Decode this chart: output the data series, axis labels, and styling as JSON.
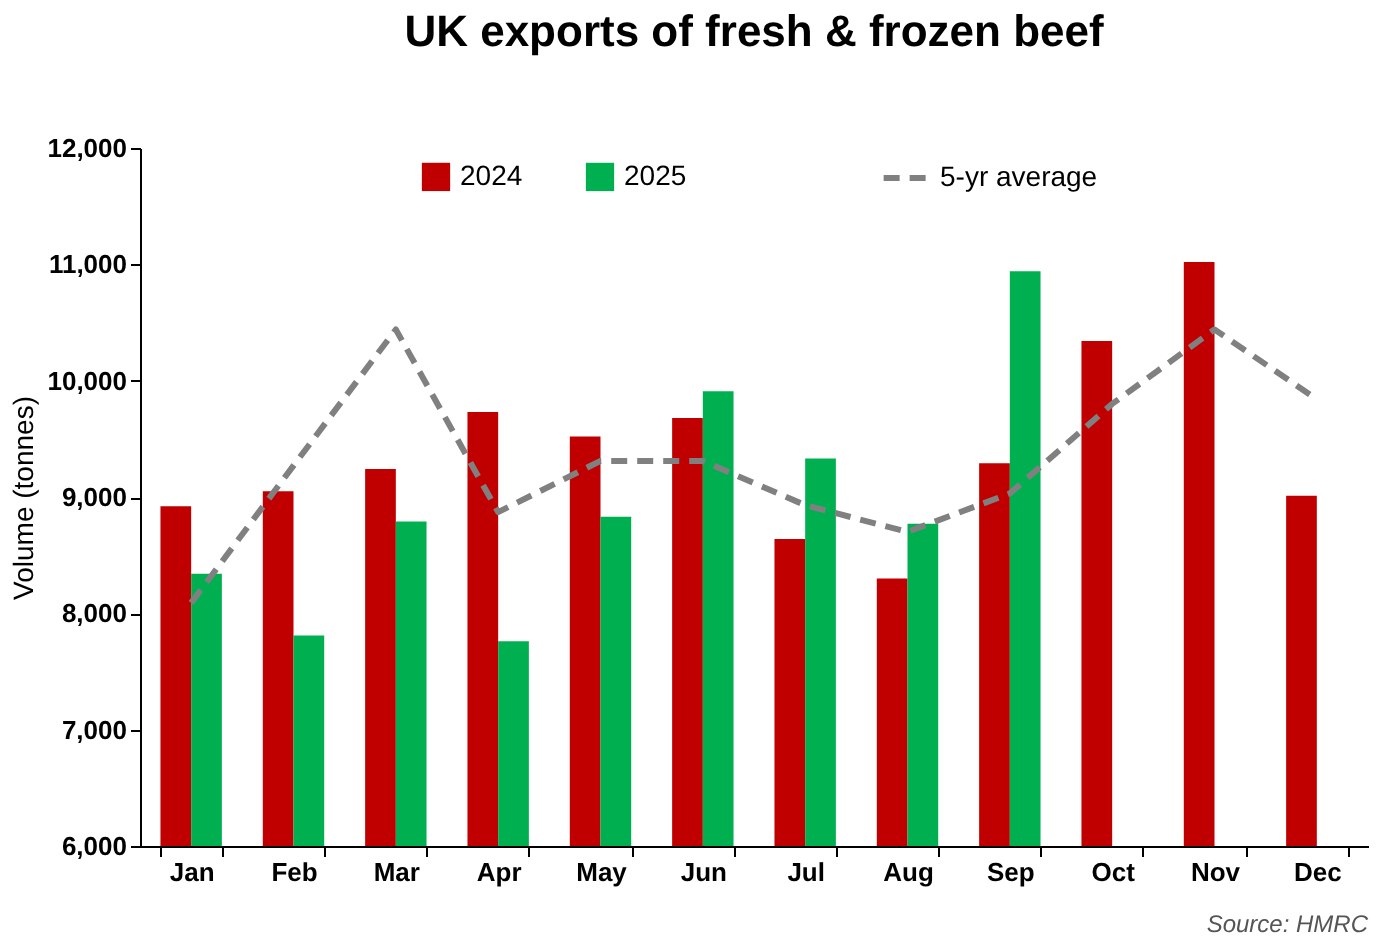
{
  "chart_data": {
    "type": "bar",
    "title": "UK exports of fresh & frozen beef",
    "ylabel": "Volume (tonnes)",
    "categories": [
      "Jan",
      "Feb",
      "Mar",
      "Apr",
      "May",
      "Jun",
      "Jul",
      "Aug",
      "Sep",
      "Oct",
      "Nov",
      "Dec"
    ],
    "series": [
      {
        "name": "2024",
        "color": "#c00000",
        "values": [
          8920,
          9050,
          9240,
          9730,
          9520,
          9680,
          8640,
          8300,
          9290,
          10340,
          11020,
          9010
        ]
      },
      {
        "name": "2025",
        "color": "#00b050",
        "values": [
          8340,
          7810,
          8790,
          7760,
          8830,
          9910,
          9330,
          8770,
          10940,
          null,
          null,
          null
        ]
      },
      {
        "name": "5-yr average",
        "type": "line",
        "line_style": "dashed",
        "color": "#808080",
        "values": [
          8090,
          9270,
          10440,
          8870,
          9310,
          9310,
          8930,
          8700,
          9030,
          9800,
          10440,
          9840
        ]
      }
    ],
    "ylim": [
      6000,
      12000
    ],
    "yticks": [
      {
        "value": 6000,
        "label": "6,000"
      },
      {
        "value": 7000,
        "label": "7,000"
      },
      {
        "value": 8000,
        "label": "8,000"
      },
      {
        "value": 9000,
        "label": "9,000"
      },
      {
        "value": 10000,
        "label": "10,000"
      },
      {
        "value": 11000,
        "label": "11,000"
      },
      {
        "value": 12000,
        "label": "12,000"
      }
    ],
    "grid": false,
    "legend": "top",
    "marker": "none",
    "annotations": [
      "Source: HMRC"
    ]
  }
}
